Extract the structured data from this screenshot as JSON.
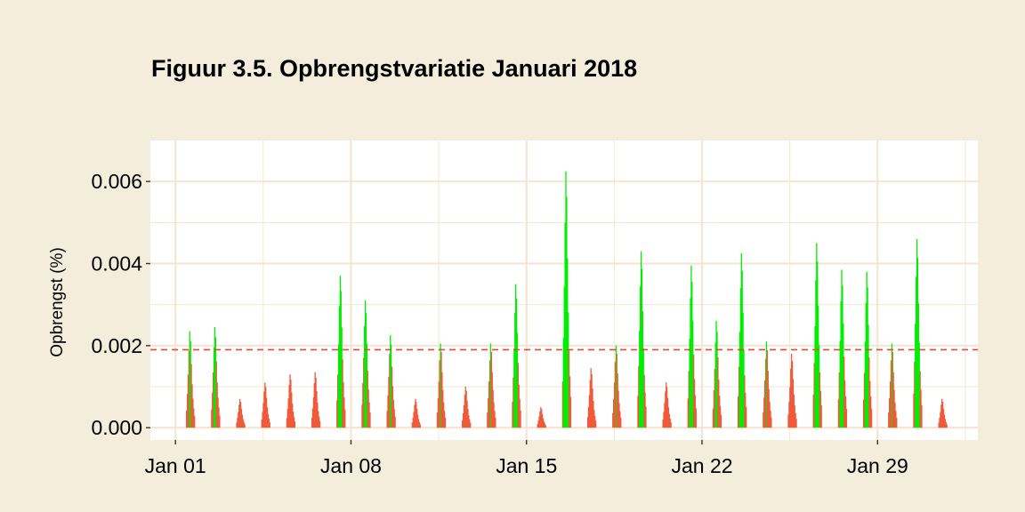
{
  "chart_data": {
    "type": "bar",
    "title": "Figuur 3.5. Opbrengstvariatie Januari 2018",
    "xlabel": "",
    "ylabel": "Opbrengst (%)",
    "x_ticks": [
      "Jan 01",
      "Jan 08",
      "Jan 15",
      "Jan 22",
      "Jan 29"
    ],
    "y_ticks": [
      "0.000",
      "0.002",
      "0.004",
      "0.006"
    ],
    "ylim": [
      -0.0003,
      0.007
    ],
    "xlim": [
      "2017-12-31",
      "2018-02-02"
    ],
    "threshold": 0.0019,
    "colors": {
      "above": "#00EE00",
      "below": "#EE5A3A",
      "threshold": "#E8473A"
    },
    "daily_bursts": [
      {
        "date": "2018-01-01",
        "peak": 0.00235
      },
      {
        "date": "2018-01-02",
        "peak": 0.00245
      },
      {
        "date": "2018-01-03",
        "peak": 0.0007
      },
      {
        "date": "2018-01-04",
        "peak": 0.0011
      },
      {
        "date": "2018-01-05",
        "peak": 0.0013
      },
      {
        "date": "2018-01-06",
        "peak": 0.00135
      },
      {
        "date": "2018-01-07",
        "peak": 0.0037
      },
      {
        "date": "2018-01-08",
        "peak": 0.0031
      },
      {
        "date": "2018-01-09",
        "peak": 0.00225
      },
      {
        "date": "2018-01-10",
        "peak": 0.0007
      },
      {
        "date": "2018-01-11",
        "peak": 0.00205
      },
      {
        "date": "2018-01-12",
        "peak": 0.001
      },
      {
        "date": "2018-01-13",
        "peak": 0.00205
      },
      {
        "date": "2018-01-14",
        "peak": 0.0035
      },
      {
        "date": "2018-01-15",
        "peak": 0.0005
      },
      {
        "date": "2018-01-16",
        "peak": 0.00625
      },
      {
        "date": "2018-01-17",
        "peak": 0.00145
      },
      {
        "date": "2018-01-18",
        "peak": 0.002
      },
      {
        "date": "2018-01-19",
        "peak": 0.0043
      },
      {
        "date": "2018-01-20",
        "peak": 0.0011
      },
      {
        "date": "2018-01-21",
        "peak": 0.00395
      },
      {
        "date": "2018-01-22",
        "peak": 0.0026
      },
      {
        "date": "2018-01-23",
        "peak": 0.00425
      },
      {
        "date": "2018-01-24",
        "peak": 0.0021
      },
      {
        "date": "2018-01-25",
        "peak": 0.0018
      },
      {
        "date": "2018-01-26",
        "peak": 0.0045
      },
      {
        "date": "2018-01-27",
        "peak": 0.00385
      },
      {
        "date": "2018-01-28",
        "peak": 0.0038
      },
      {
        "date": "2018-01-29",
        "peak": 0.00205
      },
      {
        "date": "2018-01-30",
        "peak": 0.0046
      },
      {
        "date": "2018-01-31",
        "peak": 0.0007
      }
    ],
    "grid": true,
    "legend": "none"
  }
}
